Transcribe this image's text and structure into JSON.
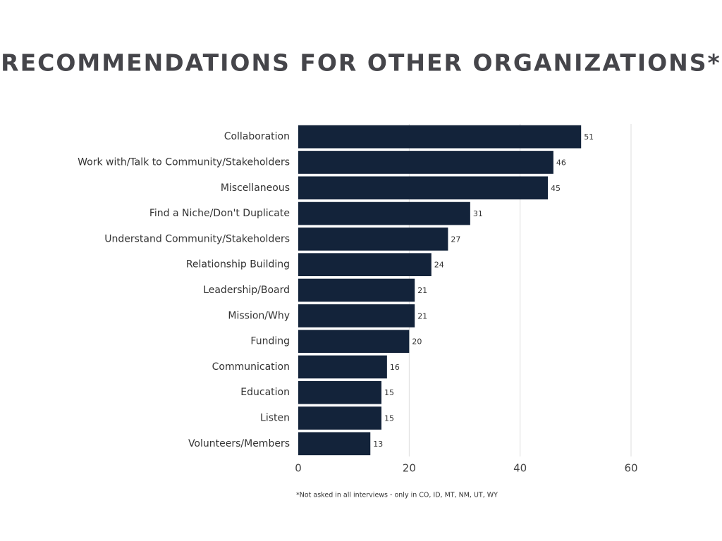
{
  "chart_data": {
    "type": "bar",
    "orientation": "horizontal",
    "title": "RECOMMENDATIONS FOR OTHER ORGANIZATIONS*",
    "categories": [
      "Collaboration",
      "Work with/Talk to Community/Stakeholders",
      "Miscellaneous",
      "Find a Niche/Don't Duplicate",
      "Understand Community/Stakeholders",
      "Relationship Building",
      "Leadership/Board",
      "Mission/Why",
      "Funding",
      "Communication",
      "Education",
      "Listen",
      "Volunteers/Members"
    ],
    "values": [
      51,
      46,
      45,
      31,
      27,
      24,
      21,
      21,
      20,
      16,
      15,
      15,
      13
    ],
    "color": "#13233a",
    "xlim": [
      0,
      60
    ],
    "xticks": [
      0,
      20,
      40,
      60
    ],
    "grid": true,
    "footnote": "*Not asked in all interviews - only in CO, ID, MT, NM, UT, WY"
  }
}
